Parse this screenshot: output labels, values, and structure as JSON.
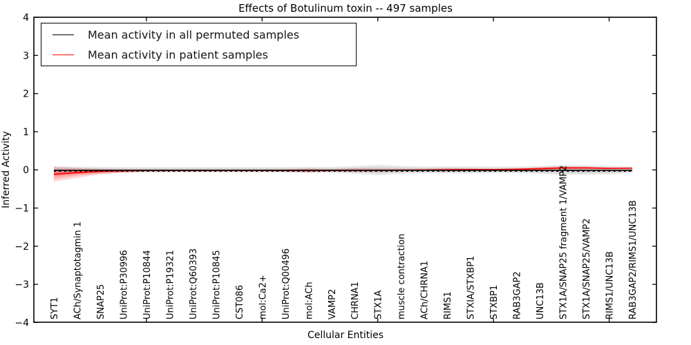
{
  "title": "Effects of Botulinum toxin -- 497 samples",
  "legend": {
    "position": "upper left",
    "entries": [
      {
        "label": "Mean activity in all permuted samples",
        "color": "#000000"
      },
      {
        "label": "Mean activity in patient samples",
        "color": "#ff0000"
      }
    ]
  },
  "chart_data": {
    "type": "line",
    "title": "Effects of Botulinum toxin -- 497 samples",
    "xlabel": "Cellular Entities",
    "ylabel": "Inferred Activity",
    "ylim": [
      -4,
      4
    ],
    "yticks": [
      4,
      3,
      2,
      1,
      0,
      -1,
      -2,
      -3,
      -4
    ],
    "x_major_ticks": [
      5,
      10,
      15,
      20,
      25
    ],
    "grid": false,
    "legend_position": "upper left",
    "categories": [
      "SYT1",
      "ACh/Synaptotagmin 1",
      "SNAP25",
      "UniProt:P30996",
      "UniProt:P10844",
      "UniProt:P19321",
      "UniProt:Q60393",
      "UniProt:P10845",
      "CST086",
      "mol:Ca2+",
      "UniProt:Q00496",
      "mol:ACh",
      "VAMP2",
      "CHRNA1",
      "STX1A",
      "muscle contraction",
      "ACh/CHRNA1",
      "RIMS1",
      "STXIA/STXBP1",
      "STXBP1",
      "RAB3GAP2",
      "UNC13B",
      "STX1A/SNAP25 fragment 1/VAMP2",
      "STX1A/SNAP25/VAMP2",
      "RIMS1/UNC13B",
      "RAB3GAP2/RIMS1/UNC13B"
    ],
    "series": [
      {
        "name": "Mean activity in all permuted samples",
        "color": "#000000",
        "style": "solid-with-dotted-overlay",
        "values": [
          -0.01,
          -0.01,
          -0.01,
          -0.01,
          -0.01,
          -0.01,
          -0.01,
          -0.01,
          -0.01,
          -0.01,
          -0.01,
          -0.01,
          -0.01,
          -0.01,
          -0.01,
          -0.01,
          -0.01,
          -0.01,
          -0.01,
          -0.01,
          -0.01,
          -0.01,
          -0.01,
          -0.01,
          -0.01,
          -0.01
        ]
      },
      {
        "name": "Mean activity in patient samples",
        "color": "#ff0000",
        "style": "solid",
        "values": [
          -0.115,
          -0.07,
          -0.04,
          -0.025,
          -0.018,
          -0.015,
          -0.015,
          -0.015,
          -0.015,
          -0.015,
          -0.015,
          -0.02,
          -0.015,
          -0.01,
          -0.01,
          -0.008,
          -0.005,
          0.0,
          0.005,
          0.008,
          0.015,
          0.03,
          0.05,
          0.05,
          0.04,
          0.045
        ]
      }
    ],
    "bands": [
      {
        "name": "permuted-samples-spread",
        "color": "#000000",
        "opacity": 0.1,
        "layers": [
          1.0,
          0.55
        ],
        "upper": [
          0.1,
          0.085,
          0.078,
          0.072,
          0.07,
          0.07,
          0.07,
          0.07,
          0.07,
          0.07,
          0.075,
          0.082,
          0.075,
          0.1,
          0.13,
          0.102,
          0.085,
          0.09,
          0.09,
          0.085,
          0.085,
          0.1,
          0.125,
          0.12,
          0.11,
          0.075
        ],
        "lower": [
          -0.125,
          -0.105,
          -0.09,
          -0.078,
          -0.072,
          -0.07,
          -0.07,
          -0.07,
          -0.07,
          -0.07,
          -0.075,
          -0.085,
          -0.075,
          -0.1,
          -0.135,
          -0.105,
          -0.085,
          -0.09,
          -0.09,
          -0.085,
          -0.085,
          -0.1,
          -0.13,
          -0.125,
          -0.115,
          -0.08
        ]
      },
      {
        "name": "patient-samples-spread",
        "color": "#ff0000",
        "opacity": 0.16,
        "layers": [
          1.0,
          0.62,
          0.32
        ],
        "upper": [
          0.08,
          0.05,
          0.028,
          0.018,
          0.012,
          0.01,
          0.01,
          0.01,
          0.01,
          0.01,
          0.018,
          0.035,
          0.02,
          0.04,
          0.03,
          0.02,
          0.03,
          0.05,
          0.04,
          0.03,
          0.04,
          0.07,
          0.095,
          0.085,
          0.065,
          0.06
        ],
        "lower": [
          -0.31,
          -0.21,
          -0.12,
          -0.07,
          -0.045,
          -0.04,
          -0.04,
          -0.04,
          -0.04,
          -0.04,
          -0.05,
          -0.065,
          -0.045,
          -0.055,
          -0.045,
          -0.035,
          -0.03,
          -0.035,
          -0.03,
          -0.02,
          -0.01,
          0.0,
          0.01,
          0.015,
          0.02,
          0.025
        ]
      }
    ]
  }
}
